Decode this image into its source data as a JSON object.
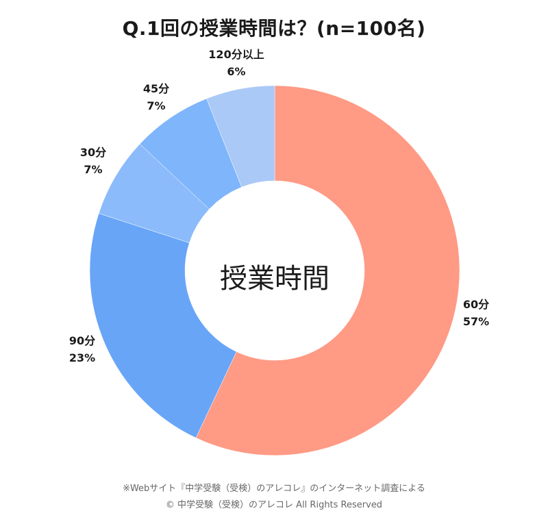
{
  "title": "Q.1回の授業時間は？(n=100名)",
  "chart_data": {
    "type": "pie",
    "title": "Q.1回の授業時間は？(n=100名)",
    "center_label": "授業時間",
    "donut": true,
    "slices": [
      {
        "label": "60分",
        "value": 57,
        "pct": "57%",
        "color": "#ff9a85"
      },
      {
        "label": "90分",
        "value": 23,
        "pct": "23%",
        "color": "#68a5f7"
      },
      {
        "label": "30分",
        "value": 7,
        "pct": "7%",
        "color": "#8bbbfb"
      },
      {
        "label": "45分",
        "value": 7,
        "pct": "7%",
        "color": "#7fb5fa"
      },
      {
        "label": "120分以上",
        "value": 6,
        "pct": "6%",
        "color": "#aac9f7"
      }
    ]
  },
  "footer": {
    "source": "※Webサイト『中学受験（受検）のアレコレ』のインターネット調査による",
    "copyright": "© 中学受験（受検）のアレコレ All Rights Reserved"
  }
}
